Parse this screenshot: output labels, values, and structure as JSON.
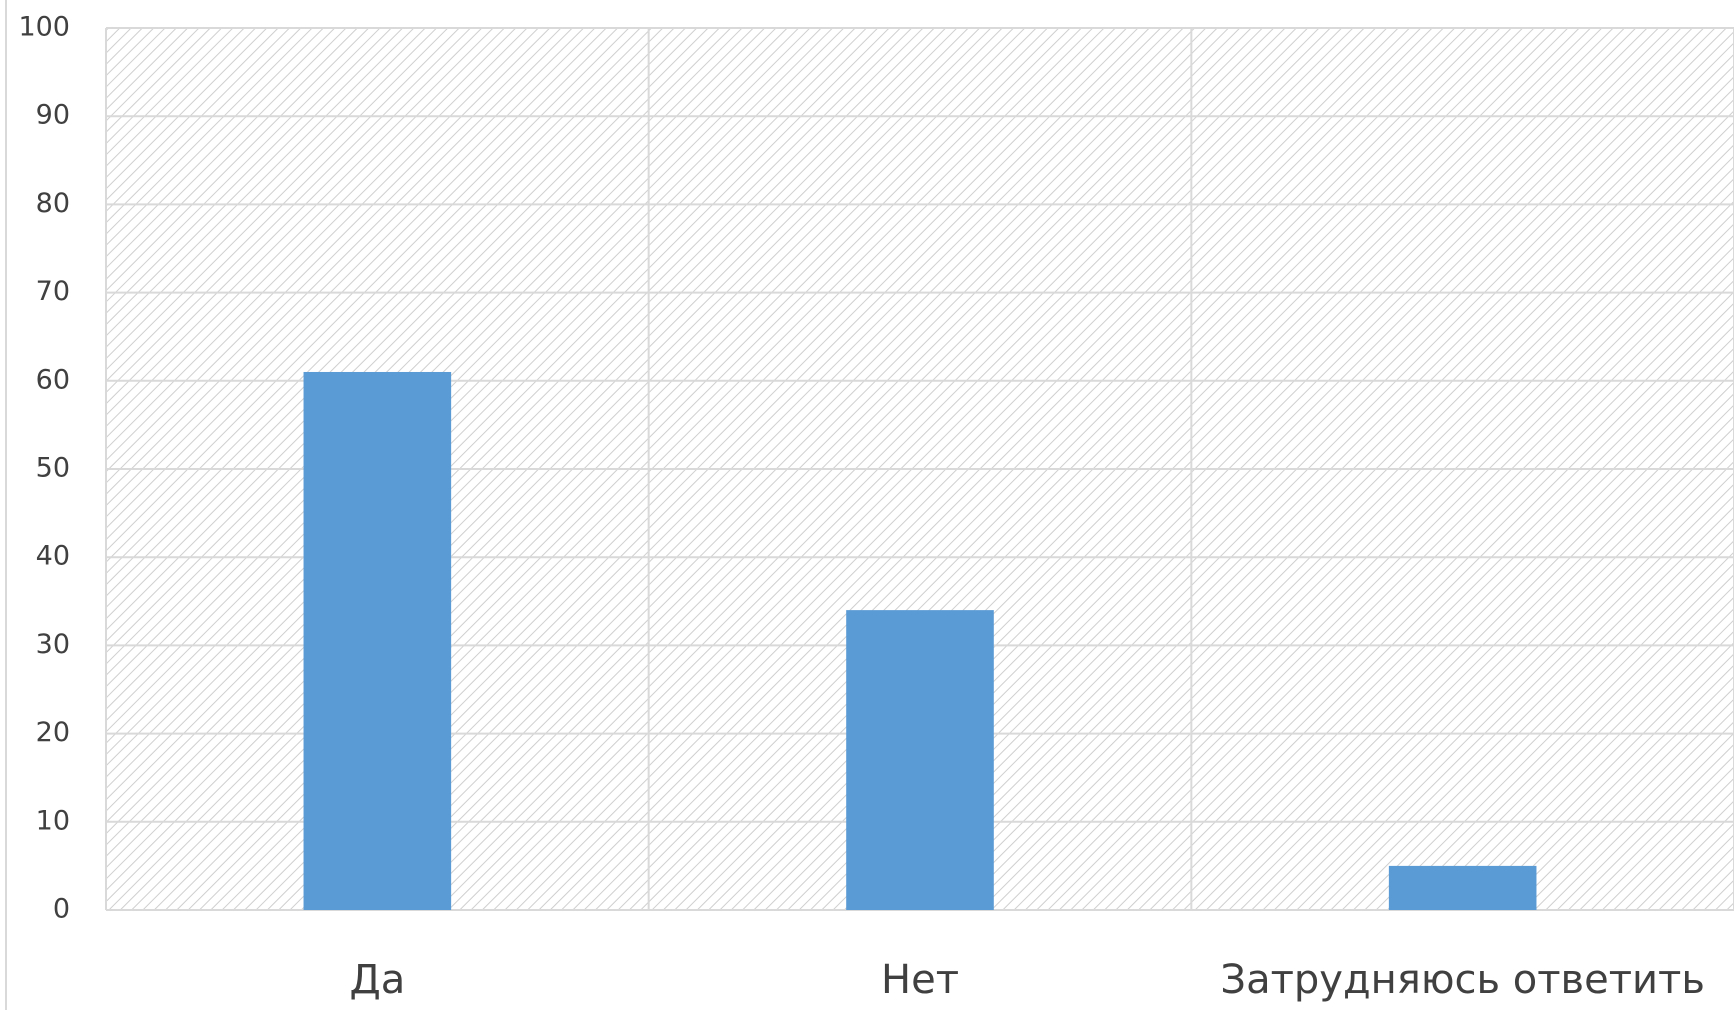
{
  "chart_data": {
    "type": "bar",
    "categories": [
      "Да",
      "Нет",
      "Затрудняюсь ответить"
    ],
    "values": [
      61,
      34,
      5
    ],
    "color": "#5b9bd5",
    "ylim": [
      0,
      100
    ],
    "yticks": [
      0,
      10,
      20,
      30,
      40,
      50,
      60,
      70,
      80,
      90,
      100
    ],
    "grid": true
  }
}
